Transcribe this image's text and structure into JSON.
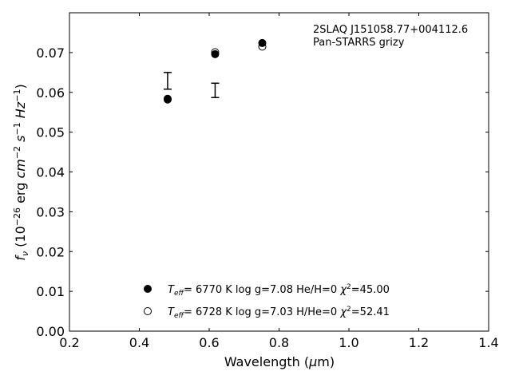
{
  "chart_data": {
    "type": "scatter",
    "xlabel": "Wavelength (μm)",
    "ylabel": "f_ν (10^-26 erg cm^-2 s^-1 Hz^-1)",
    "xlim": [
      0.2,
      1.4
    ],
    "ylim": [
      0.0,
      0.08
    ],
    "x_ticks": [
      "0.2",
      "0.4",
      "0.6",
      "0.8",
      "1.0",
      "1.2",
      "1.4"
    ],
    "y_ticks": [
      "0.00",
      "0.01",
      "0.02",
      "0.03",
      "0.04",
      "0.05",
      "0.06",
      "0.07"
    ],
    "grid": false,
    "annotation_lines": [
      "2SLAQ J151058.77+004112.6",
      "Pan-STARRS grizy"
    ],
    "observed": {
      "x": [
        0.481,
        0.617
      ],
      "y": [
        0.0629,
        0.0605
      ],
      "yerr": [
        0.0021,
        0.0018
      ]
    },
    "series": [
      {
        "name": "Teff= 6770 K log g=7.08 He/H=0 χ2=45.00",
        "marker": "filled-circle",
        "x": [
          0.481,
          0.617,
          0.752
        ],
        "y": [
          0.0584,
          0.0696,
          0.0724
        ]
      },
      {
        "name": "Teff= 6728 K log g=7.03 H/He=0 χ2=52.41",
        "marker": "open-circle",
        "x": [
          0.481,
          0.617,
          0.752
        ],
        "y": [
          0.0582,
          0.0701,
          0.0715
        ]
      }
    ],
    "legend_placement": "lower-center",
    "legend": [
      {
        "teff": "6770 K",
        "logg": "log g=7.08",
        "comp": "He/H=0",
        "chi": "=45.00"
      },
      {
        "teff": "6728 K",
        "logg": "log g=7.03",
        "comp": "H/He=0",
        "chi": "=52.41"
      }
    ]
  }
}
